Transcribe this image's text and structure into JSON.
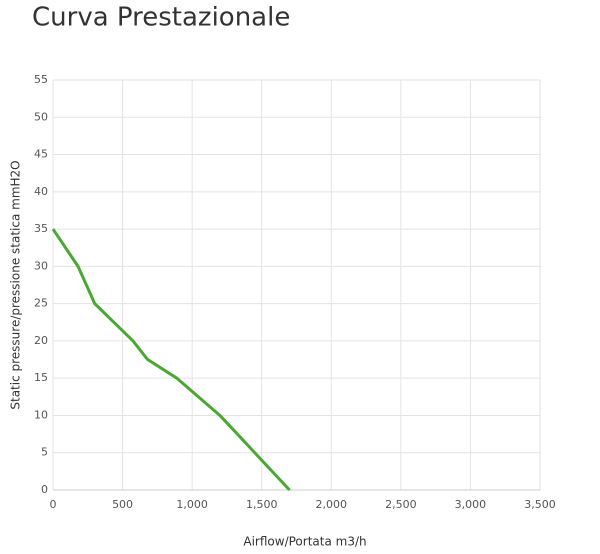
{
  "chart_data": {
    "type": "line",
    "title": "Curva Prestazionale",
    "x_label": "Airflow/Portata m3/h",
    "y_label": "Static pressure/pressione statica mmH2O",
    "series": [
      {
        "color": "#4aa832",
        "x": [
          0,
          180,
          300,
          575,
          680,
          890,
          1200,
          1700
        ],
        "values": [
          35,
          30,
          25,
          20,
          17.5,
          15,
          10,
          0
        ]
      }
    ],
    "xlim": [
      0,
      3500
    ],
    "xticks": [
      0,
      500,
      {
        "value": 1000,
        "label": "1,000"
      },
      {
        "value": 1500,
        "label": "1,500"
      },
      {
        "value": 2000,
        "label": "2,000"
      },
      {
        "value": 2500,
        "label": "2,500"
      },
      {
        "value": 3000,
        "label": "3,000"
      },
      {
        "value": 3500,
        "label": "3,500"
      }
    ],
    "ylim": [
      0,
      55
    ],
    "yticks": [
      0,
      5,
      10,
      15,
      20,
      25,
      30,
      35,
      40,
      45,
      50,
      55
    ],
    "grid": true
  }
}
